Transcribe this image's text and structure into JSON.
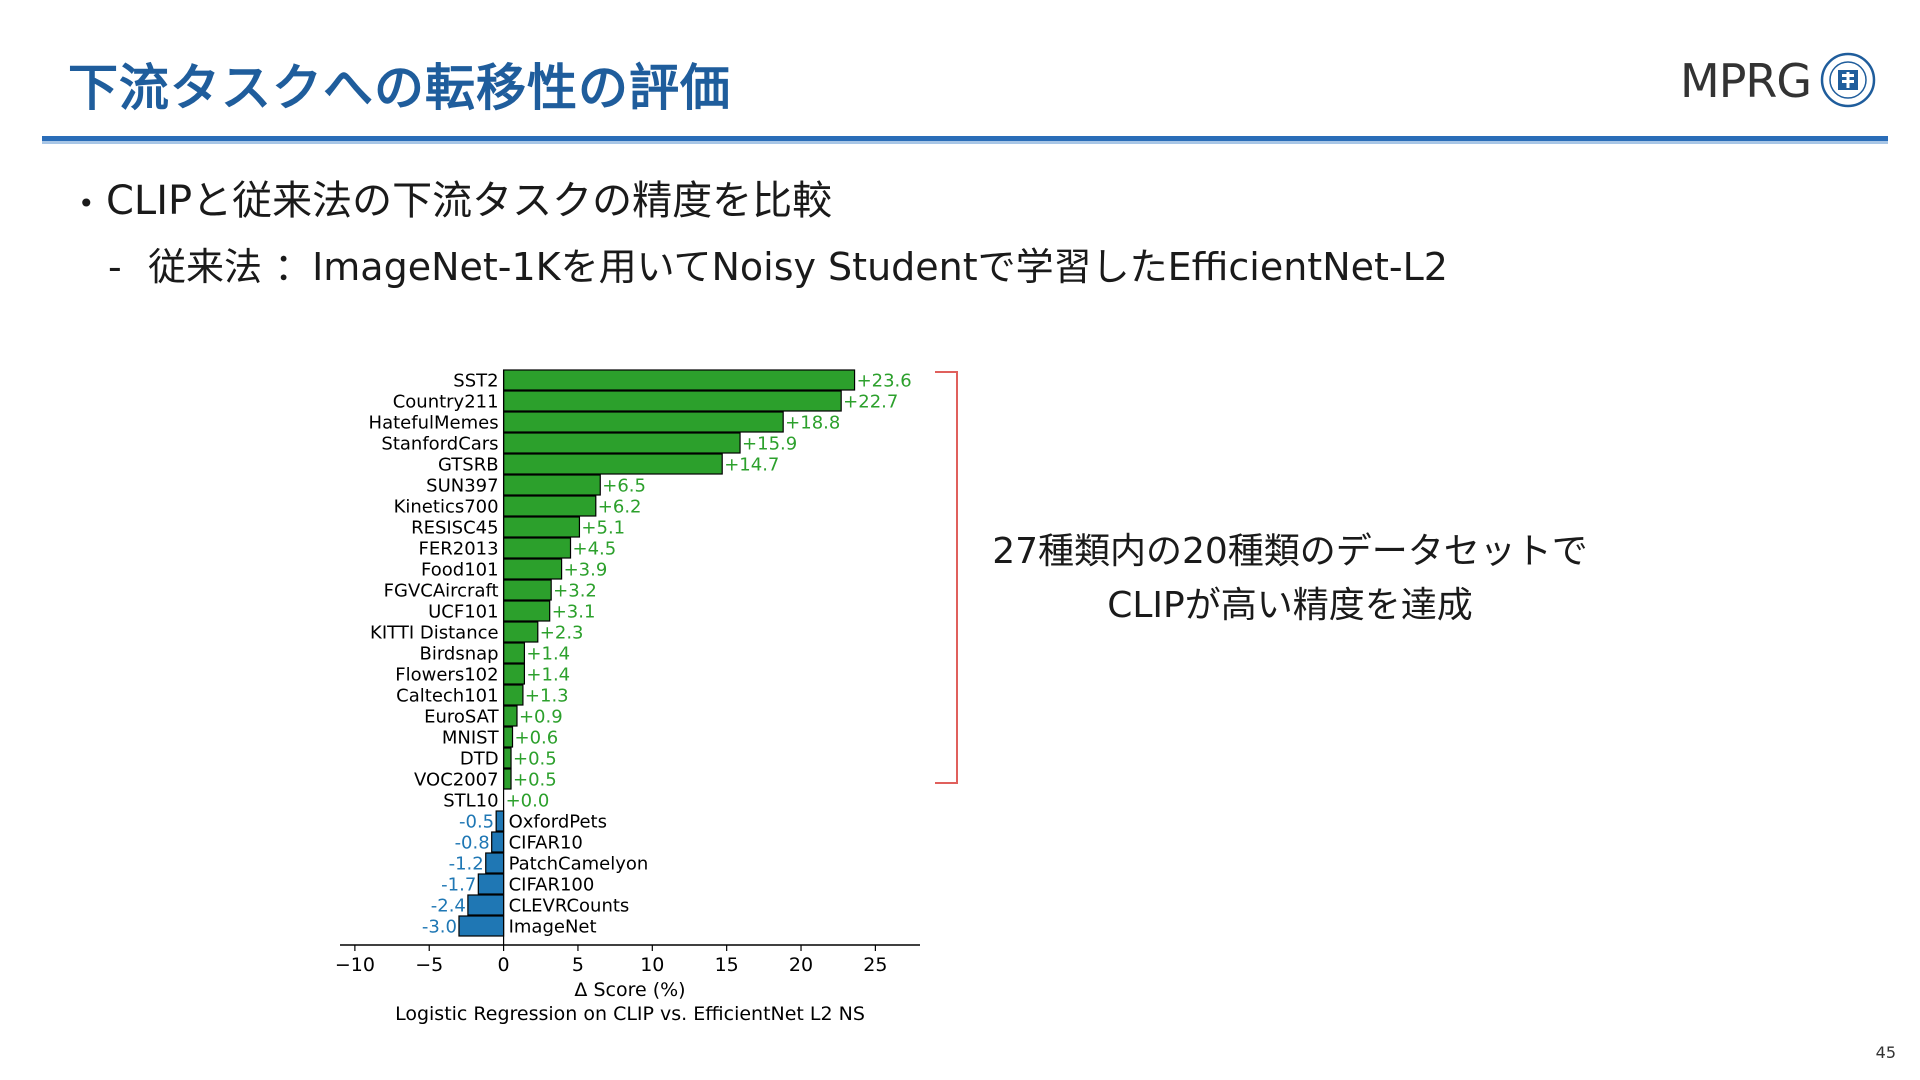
{
  "slide": {
    "title": "下流タスクへの転移性の評価",
    "logo_text": "MPRG",
    "bullet_main": "CLIPと従来法の下流タスクの精度を比較",
    "bullet_sub": "従来法 ：ImageNet-1Kを用いてNoisy Studentで学習したEfficientNet-L2",
    "annotation_line1": "27種類内の20種類のデータセットで",
    "annotation_line2": "CLIPが高い精度を達成",
    "page_number": "45"
  },
  "colors": {
    "title": "#1f5d9c",
    "rule": "#2a6db8",
    "positive_bar": "#2ca02c",
    "negative_bar": "#1f77b4",
    "bracket": "#e0605c"
  },
  "chart_data": {
    "type": "bar",
    "orientation": "horizontal",
    "categories": [
      "SST2",
      "Country211",
      "HatefulMemes",
      "StanfordCars",
      "GTSRB",
      "SUN397",
      "Kinetics700",
      "RESISC45",
      "FER2013",
      "Food101",
      "FGVCAircraft",
      "UCF101",
      "KITTI Distance",
      "Birdsnap",
      "Flowers102",
      "Caltech101",
      "EuroSAT",
      "MNIST",
      "DTD",
      "VOC2007",
      "STL10",
      "OxfordPets",
      "CIFAR10",
      "PatchCamelyon",
      "CIFAR100",
      "CLEVRCounts",
      "ImageNet"
    ],
    "values": [
      23.6,
      22.7,
      18.8,
      15.9,
      14.7,
      6.5,
      6.2,
      5.1,
      4.5,
      3.9,
      3.2,
      3.1,
      2.3,
      1.4,
      1.4,
      1.3,
      0.9,
      0.6,
      0.5,
      0.5,
      0.0,
      -0.5,
      -0.8,
      -1.2,
      -1.7,
      -2.4,
      -3.0
    ],
    "value_labels": [
      "+23.6",
      "+22.7",
      "+18.8",
      "+15.9",
      "+14.7",
      "+6.5",
      "+6.2",
      "+5.1",
      "+4.5",
      "+3.9",
      "+3.2",
      "+3.1",
      "+2.3",
      "+1.4",
      "+1.4",
      "+1.3",
      "+0.9",
      "+0.6",
      "+0.5",
      "+0.5",
      "+0.0",
      "-0.5",
      "-0.8",
      "-1.2",
      "-1.7",
      "-2.4",
      "-3.0"
    ],
    "xlabel": "Δ Score (%)",
    "caption": "Logistic Regression on CLIP vs. EfficientNet L2 NS",
    "xlim": [
      -11,
      28
    ],
    "xticks": [
      -10,
      -5,
      0,
      5,
      10,
      15,
      20,
      25
    ],
    "xtick_labels": [
      "−10",
      "−5",
      "0",
      "5",
      "10",
      "15",
      "20",
      "25"
    ],
    "grid": false
  }
}
